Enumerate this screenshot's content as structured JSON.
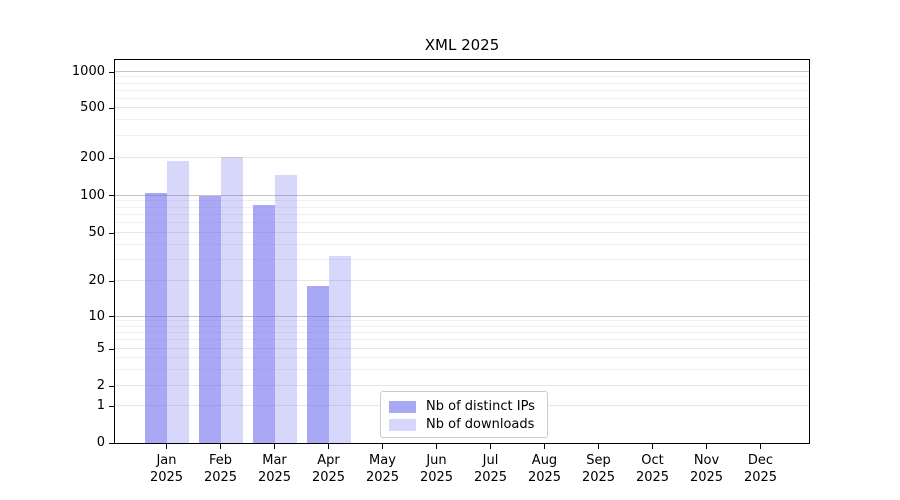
{
  "chart_data": {
    "type": "bar",
    "title": "XML 2025",
    "categories": [
      "Jan 2025",
      "Feb 2025",
      "Mar 2025",
      "Apr 2025",
      "May 2025",
      "Jun 2025",
      "Jul 2025",
      "Aug 2025",
      "Sep 2025",
      "Oct 2025",
      "Nov 2025",
      "Dec 2025"
    ],
    "series": [
      {
        "name": "Nb of distinct IPs",
        "color": "rgba(102,102,238,0.57)",
        "base_color": "#6666ee",
        "values": [
          105,
          100,
          84,
          18,
          null,
          null,
          null,
          null,
          null,
          null,
          null,
          null
        ]
      },
      {
        "name": "Nb of downloads",
        "color": "rgba(102,102,238,0.26)",
        "base_color": "#6666ee",
        "values": [
          190,
          205,
          147,
          32,
          null,
          null,
          null,
          null,
          null,
          null,
          null,
          null
        ]
      }
    ],
    "yticks": [
      0,
      1,
      2,
      5,
      10,
      20,
      50,
      100,
      200,
      500,
      1000
    ],
    "yscale": "symlog",
    "xlabel": "",
    "ylabel": "",
    "grid": true,
    "legend_position": "inside-bottom-left"
  },
  "legend": {
    "items": [
      {
        "label": "Nb of distinct IPs"
      },
      {
        "label": "Nb of downloads"
      }
    ]
  }
}
